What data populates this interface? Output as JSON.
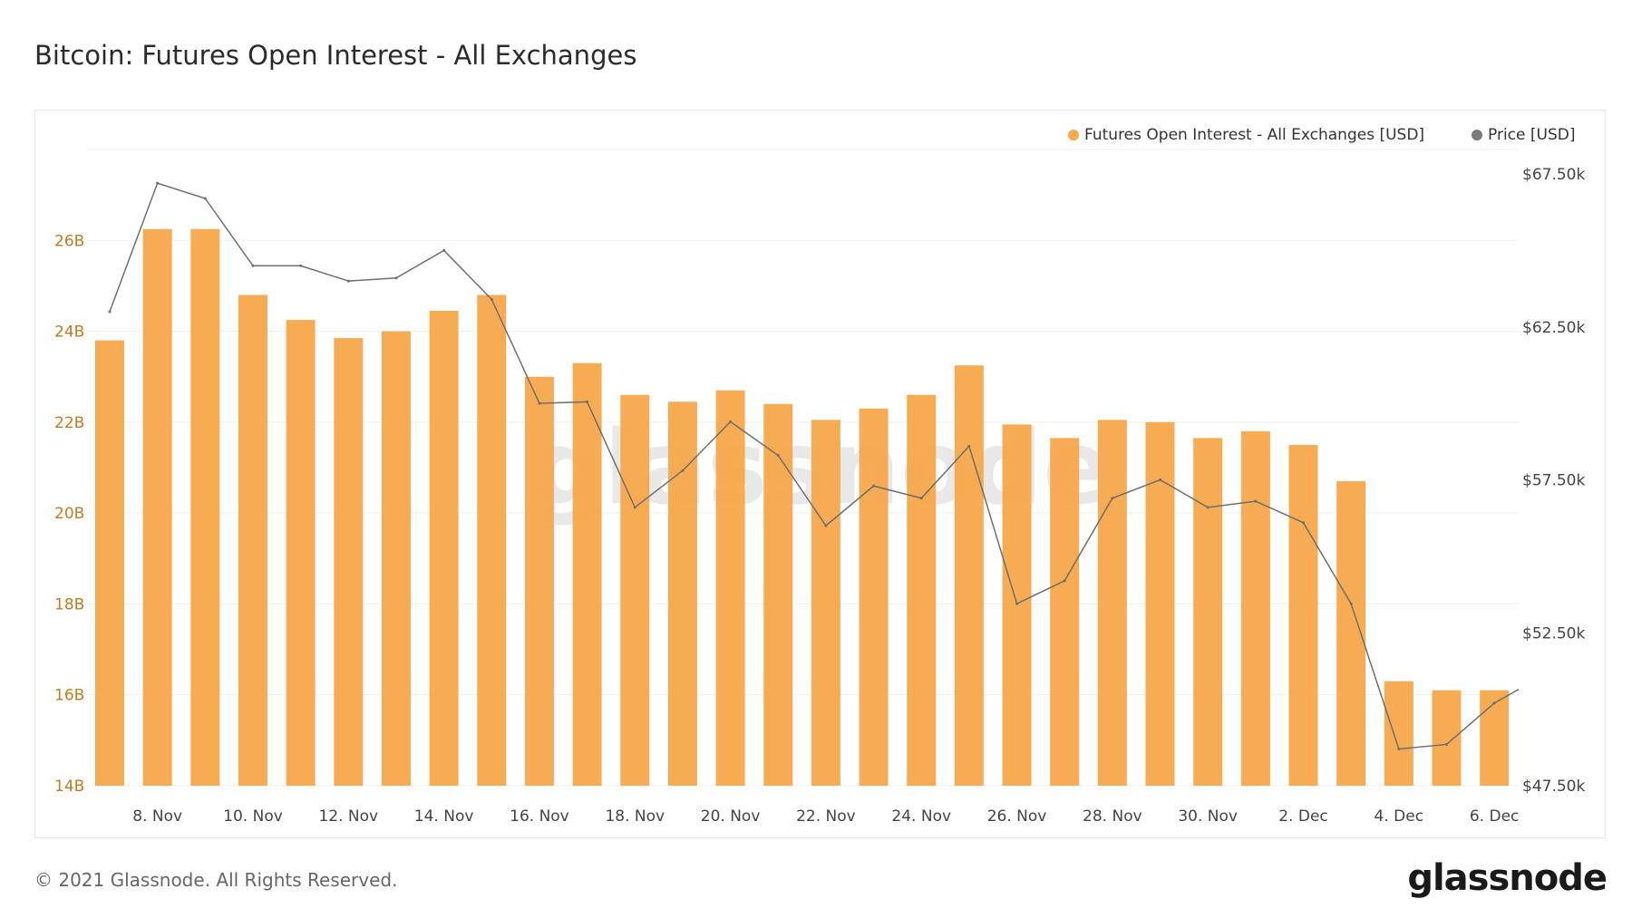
{
  "title": "Bitcoin: Futures Open Interest - All Exchanges",
  "footer": "© 2021 Glassnode. All Rights Reserved.",
  "logo": "glassnode",
  "watermark": "glassnode",
  "colors": {
    "bars": "#f7a84a",
    "price": "#6e6e6e",
    "left_axis": "#c47a1e",
    "right_axis": "#444444"
  },
  "chart_data": {
    "type": "bar+line",
    "title": "Bitcoin: Futures Open Interest - All Exchanges",
    "legend_position": "top-right",
    "grid": true,
    "categories": [
      "7. Nov",
      "8. Nov",
      "9. Nov",
      "10. Nov",
      "11. Nov",
      "12. Nov",
      "13. Nov",
      "14. Nov",
      "15. Nov",
      "16. Nov",
      "17. Nov",
      "18. Nov",
      "19. Nov",
      "20. Nov",
      "21. Nov",
      "22. Nov",
      "23. Nov",
      "24. Nov",
      "25. Nov",
      "26. Nov",
      "27. Nov",
      "28. Nov",
      "29. Nov",
      "30. Nov",
      "1. Dec",
      "2. Dec",
      "3. Dec",
      "4. Dec",
      "5. Dec",
      "6. Dec"
    ],
    "x_tick_labels": [
      "8. Nov",
      "10. Nov",
      "12. Nov",
      "14. Nov",
      "16. Nov",
      "18. Nov",
      "20. Nov",
      "22. Nov",
      "24. Nov",
      "26. Nov",
      "28. Nov",
      "30. Nov",
      "2. Dec",
      "4. Dec",
      "6. Dec"
    ],
    "series": [
      {
        "name": "Futures Open Interest - All Exchanges [USD]",
        "type": "bar",
        "axis": "left",
        "unit": "B",
        "values": [
          23.8,
          26.25,
          26.25,
          24.8,
          24.25,
          23.85,
          24.0,
          24.45,
          24.8,
          23.0,
          23.3,
          22.6,
          22.45,
          22.7,
          22.4,
          22.05,
          22.3,
          22.6,
          23.25,
          21.95,
          21.65,
          22.05,
          22.0,
          21.65,
          21.8,
          21.5,
          20.7,
          16.3,
          16.1,
          16.1
        ]
      },
      {
        "name": "Price [USD]",
        "type": "line",
        "axis": "right",
        "unit": "k USD",
        "values": [
          63.0,
          67.2,
          66.7,
          64.5,
          64.5,
          64.0,
          64.1,
          65.0,
          63.4,
          60.0,
          60.05,
          56.6,
          57.8,
          59.4,
          58.3,
          56.0,
          57.3,
          56.9,
          58.6,
          53.45,
          54.2,
          56.9,
          57.5,
          56.6,
          56.8,
          56.1,
          53.45,
          48.7,
          48.85,
          50.2
        ]
      }
    ],
    "left_axis": {
      "ticks": [
        "14B",
        "16B",
        "18B",
        "20B",
        "22B",
        "24B",
        "26B"
      ],
      "range": [
        14,
        28
      ]
    },
    "right_axis": {
      "ticks": [
        "$47.50k",
        "$52.50k",
        "$57.50k",
        "$62.50k",
        "$67.50k"
      ],
      "range": [
        47.5,
        68.3
      ]
    }
  }
}
